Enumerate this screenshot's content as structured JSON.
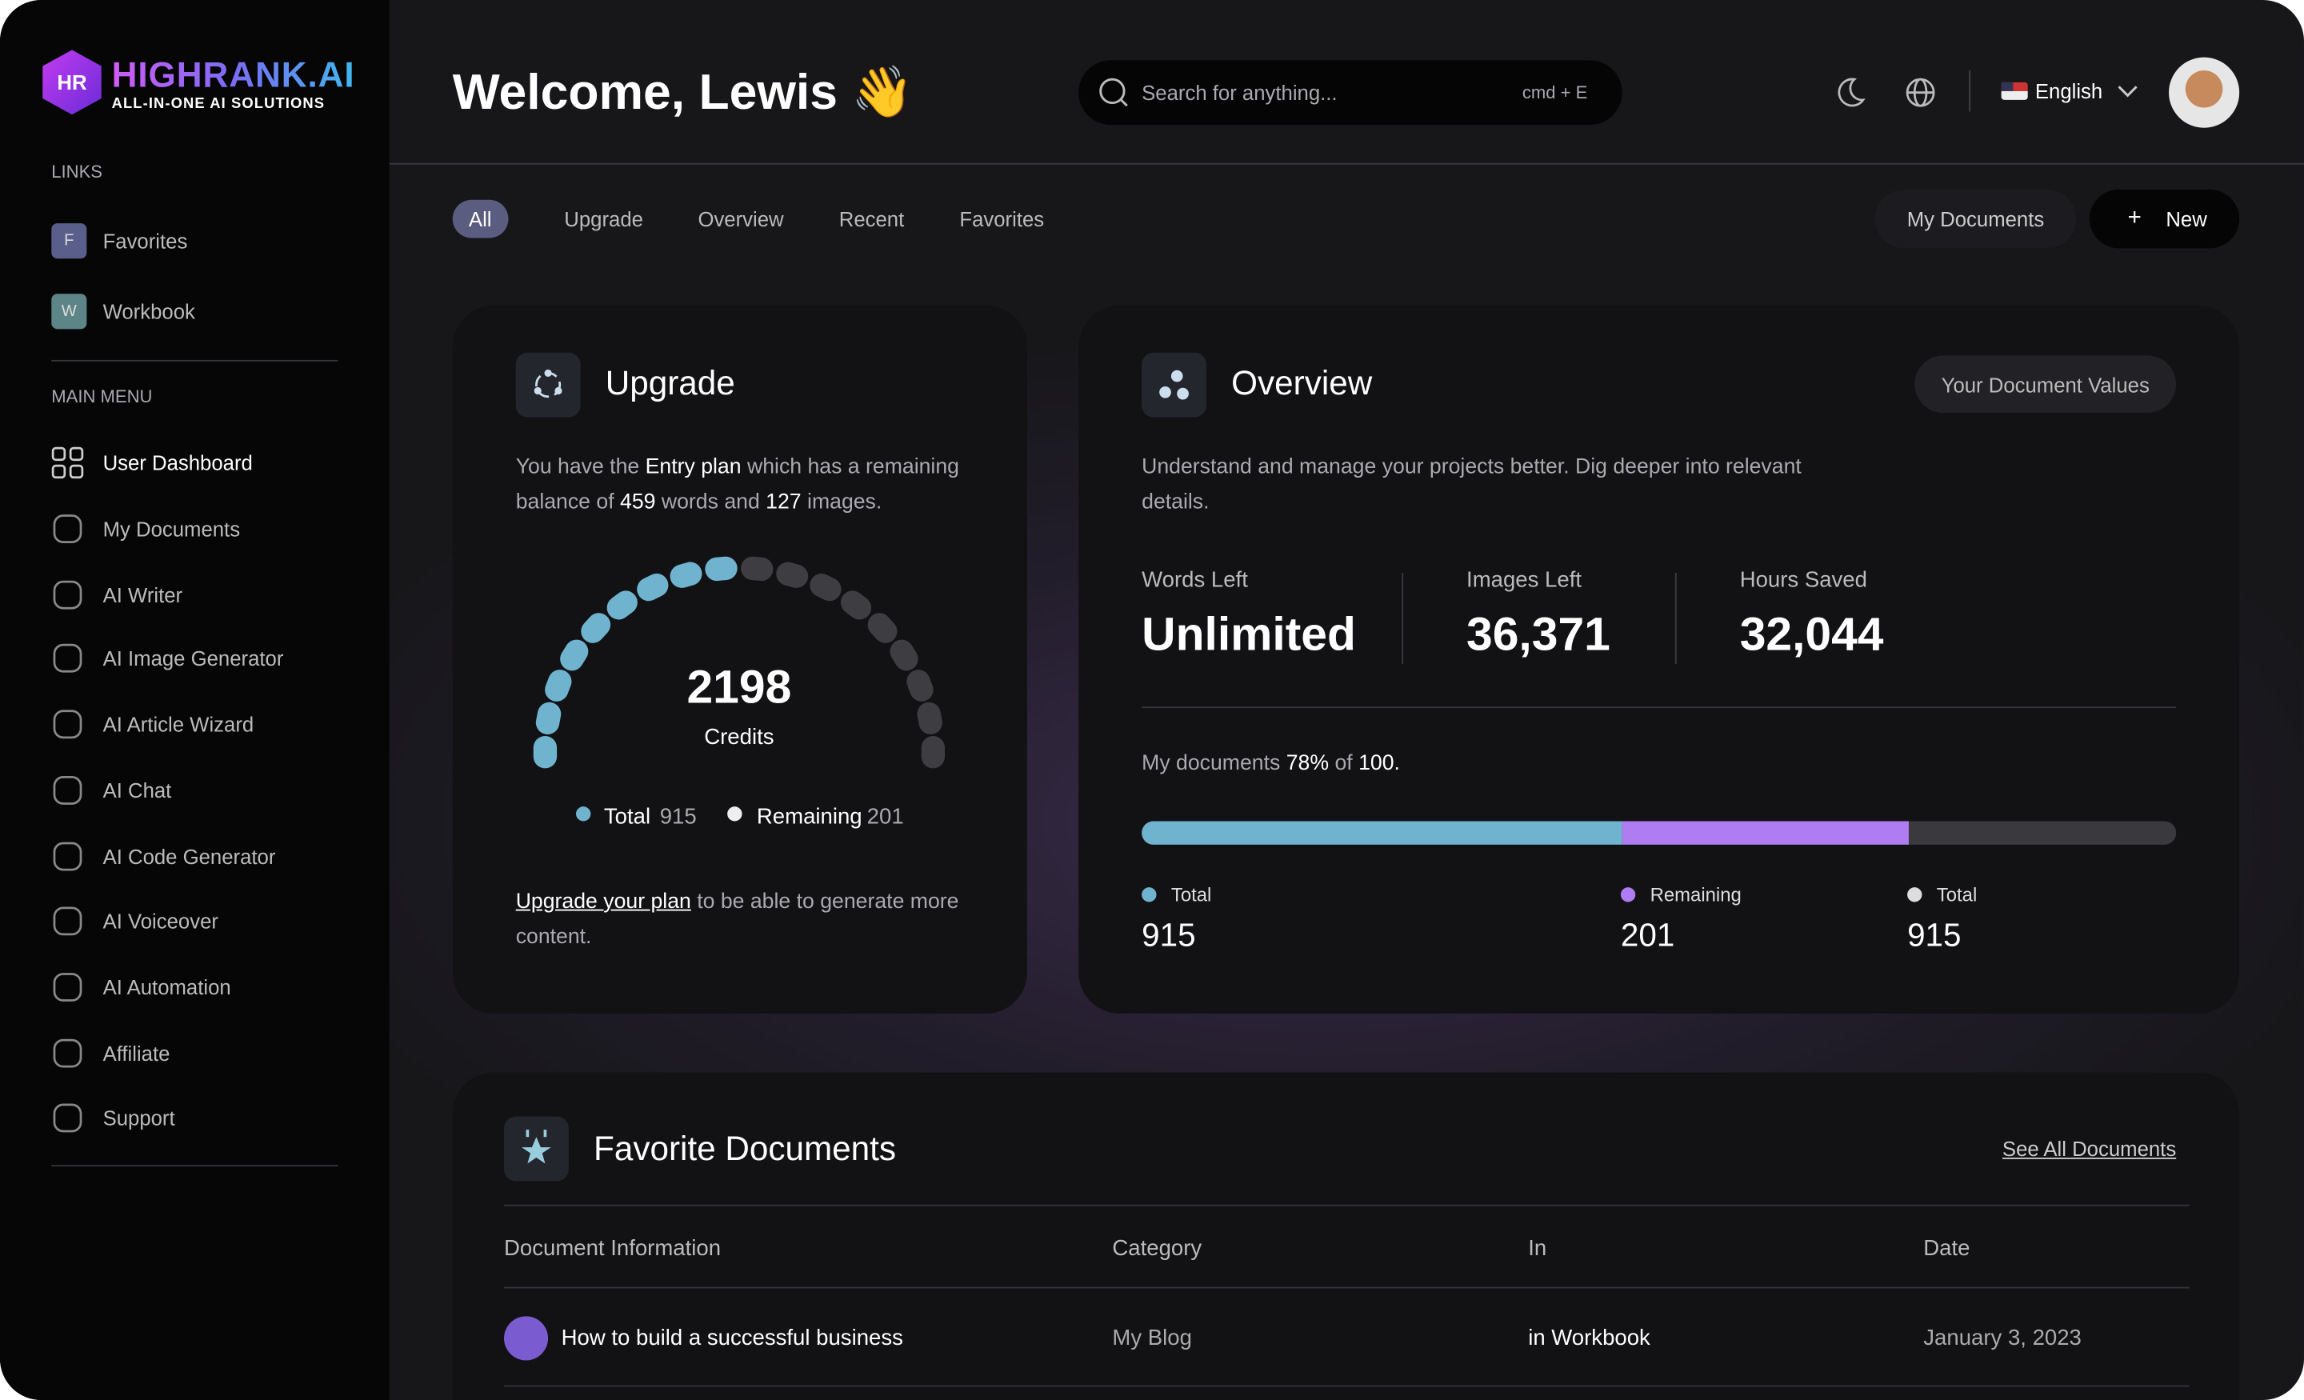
{
  "brand": {
    "name": "HIGHRANK.AI",
    "tagline": "ALL-IN-ONE AI SOLUTIONS"
  },
  "sidebar": {
    "links_heading": "LINKS",
    "links": [
      {
        "icon": "F",
        "label": "Favorites"
      },
      {
        "icon": "W",
        "label": "Workbook"
      }
    ],
    "menu_heading": "MAIN MENU",
    "menu": [
      "User Dashboard",
      "My Documents",
      "AI Writer",
      "AI Image Generator",
      "AI Article Wizard",
      "AI Chat",
      "AI Code Generator",
      "AI Voiceover",
      "AI Automation",
      "Affiliate",
      "Support"
    ]
  },
  "header": {
    "greeting": "Welcome, Lewis",
    "emoji": "👋",
    "search_placeholder": "Search for anything...",
    "shortcut": "cmd + E",
    "language": "English"
  },
  "tabs": [
    "All",
    "Upgrade",
    "Overview",
    "Recent",
    "Favorites"
  ],
  "actions": {
    "documents": "My Documents",
    "new": "New"
  },
  "upgrade": {
    "title": "Upgrade",
    "text": {
      "prefix": "You have the",
      "plan": "Entry plan",
      "middle": "which has a remaining balance of",
      "words": 459,
      "words_unit": "words and",
      "images": 127,
      "images_unit": "images."
    },
    "gauge": {
      "value": 2198,
      "label": "Credits"
    },
    "legend": [
      {
        "label": "Total",
        "value": 915
      },
      {
        "label": "Remaining",
        "value": 201
      }
    ],
    "link": "Upgrade your plan",
    "link_suffix": "to be able to generate more content."
  },
  "overview": {
    "title": "Overview",
    "button": "Your Document Values",
    "description": "Understand and manage your projects better. Dig deeper into relevant details.",
    "stats": [
      {
        "label": "Words Left",
        "value": "Unlimited"
      },
      {
        "label": "Images Left",
        "value": "36,371"
      },
      {
        "label": "Hours Saved",
        "value": "32,044"
      }
    ],
    "progress": {
      "prefix": "My documents",
      "percent": "78%",
      "of": "of",
      "max": "100."
    },
    "legend": [
      {
        "label": "Total",
        "value": 915
      },
      {
        "label": "Remaining",
        "value": 201
      },
      {
        "label": "Total",
        "value": 915
      }
    ]
  },
  "favorites": {
    "title": "Favorite Documents",
    "link": "See All Documents",
    "columns": [
      "Document Information",
      "Category",
      "In",
      "Date"
    ],
    "rows": [
      [
        "How to build a successful business",
        "My Blog",
        "in Workbook",
        "January 3, 2023"
      ]
    ]
  }
}
